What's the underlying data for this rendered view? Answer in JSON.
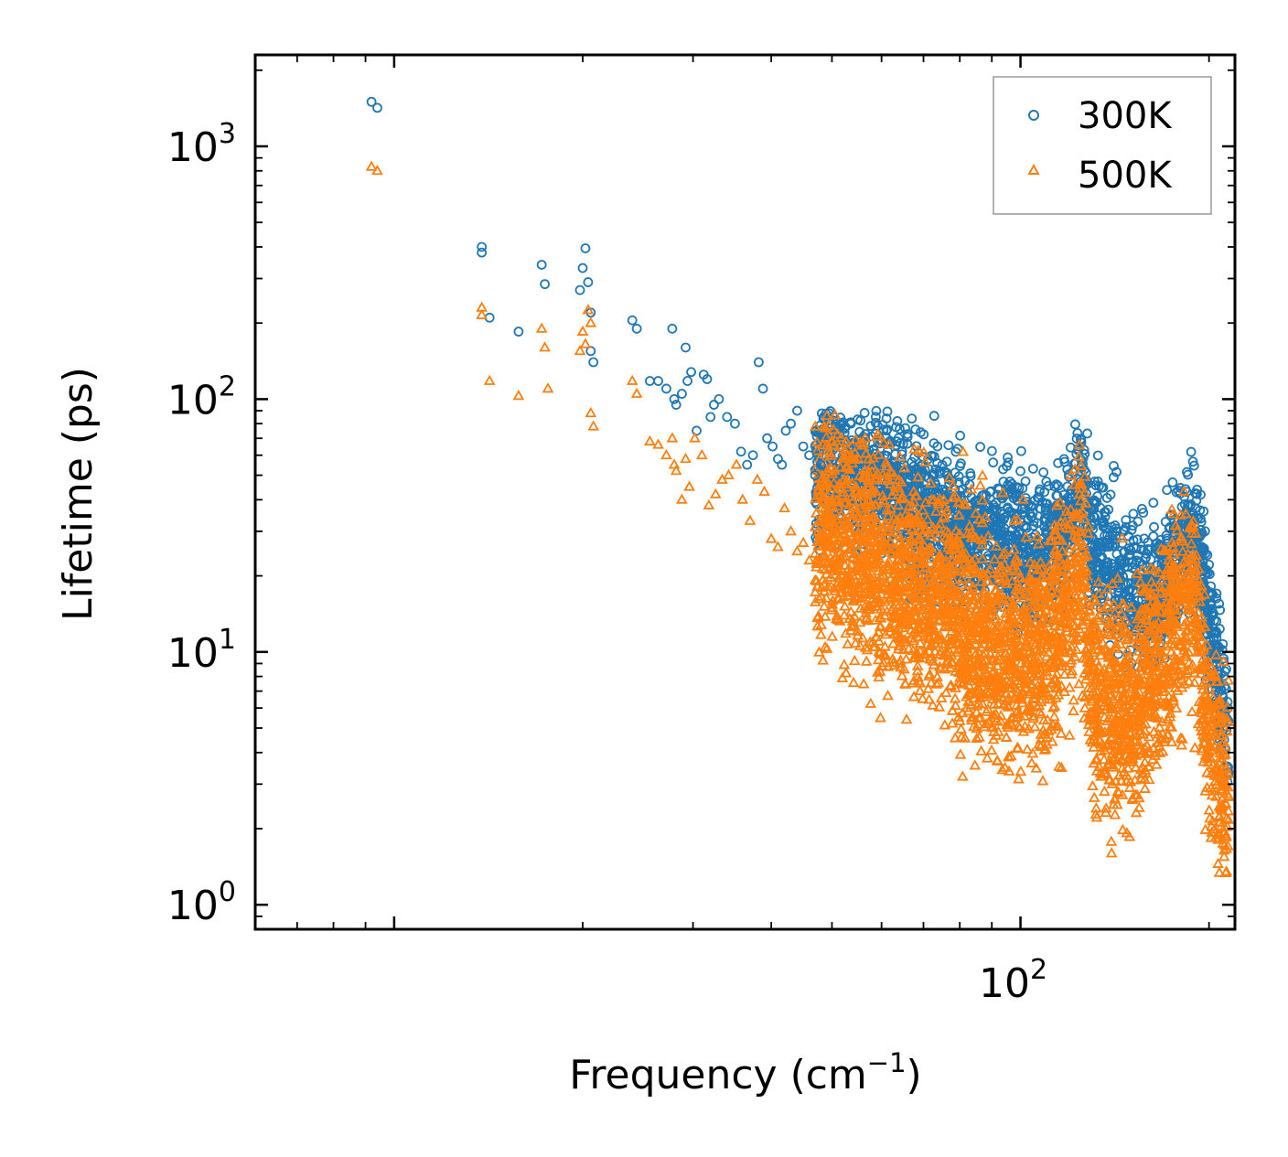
{
  "chart_data": {
    "type": "scatter",
    "title": "",
    "xlabel": "Frequency (cm",
    "xlabel_sup": "−1",
    "xlabel_end": ")",
    "ylabel": "Lifetime (ps)",
    "xscale": "log",
    "yscale": "log",
    "xlim": [
      6,
      220
    ],
    "ylim": [
      0.8,
      2300
    ],
    "x_ticks": [
      {
        "value": 100,
        "base": "10",
        "exp": "2"
      }
    ],
    "y_ticks": [
      {
        "value": 1,
        "base": "10",
        "exp": "0"
      },
      {
        "value": 10,
        "base": "10",
        "exp": "1"
      },
      {
        "value": 100,
        "base": "10",
        "exp": "2"
      },
      {
        "value": 1000,
        "base": "10",
        "exp": "3"
      }
    ],
    "legend_position": "top-right",
    "series": [
      {
        "name": "300K",
        "color": "#1f77b4",
        "marker": "circle",
        "x": [
          9.2,
          9.4,
          13.8,
          13.8,
          14.2,
          15.8,
          17.2,
          17.4,
          19.8,
          20.0,
          20.2,
          20.4,
          20.6,
          20.6,
          20.8,
          24.0,
          24.4,
          25.6,
          26.4,
          27.2,
          27.8,
          28.0,
          28.2,
          28.8,
          29.2,
          29.4,
          29.8,
          30.4,
          31.2,
          31.6,
          32.0,
          32.4,
          33.0,
          34.0,
          35.0,
          35.8,
          36.6,
          37.4,
          38.2,
          38.8,
          39.4,
          40.2,
          41.0,
          41.6,
          42.2,
          43.0,
          44.0,
          45.0,
          46.0,
          47.0,
          48.0
        ],
        "y": [
          1500,
          1420,
          400,
          380,
          210,
          185,
          340,
          285,
          270,
          330,
          395,
          290,
          220,
          155,
          140,
          205,
          190,
          118,
          118,
          110,
          190,
          100,
          95,
          105,
          160,
          118,
          128,
          75,
          125,
          120,
          85,
          95,
          100,
          85,
          80,
          62,
          55,
          60,
          140,
          110,
          70,
          65,
          58,
          55,
          75,
          80,
          90,
          65,
          60,
          50,
          55
        ]
      },
      {
        "name": "500K",
        "color": "#ff7f0e",
        "marker": "triangle",
        "x": [
          9.2,
          9.4,
          13.8,
          13.8,
          14.2,
          15.8,
          17.2,
          17.4,
          17.6,
          19.8,
          20.0,
          20.2,
          20.4,
          20.6,
          20.6,
          20.8,
          24.0,
          24.4,
          25.6,
          26.4,
          27.2,
          27.8,
          28.0,
          28.2,
          28.8,
          29.2,
          29.6,
          30.2,
          31.0,
          31.8,
          32.6,
          33.4,
          34.2,
          35.2,
          36.0,
          37.0,
          38.0,
          39.0,
          40.0,
          41.0,
          42.0,
          43.0,
          44.0,
          45.0,
          46.0
        ],
        "y": [
          830,
          800,
          230,
          215,
          118,
          103,
          190,
          160,
          110,
          155,
          185,
          165,
          225,
          200,
          88,
          78,
          118,
          105,
          68,
          66,
          60,
          70,
          55,
          52,
          40,
          58,
          45,
          70,
          60,
          38,
          42,
          48,
          50,
          55,
          40,
          33,
          48,
          43,
          28,
          26,
          37,
          30,
          25,
          27,
          23
        ]
      }
    ]
  },
  "legend": {
    "items": [
      {
        "label": "300K",
        "color": "#1f77b4"
      },
      {
        "label": "500K",
        "color": "#ff7f0e"
      }
    ]
  }
}
